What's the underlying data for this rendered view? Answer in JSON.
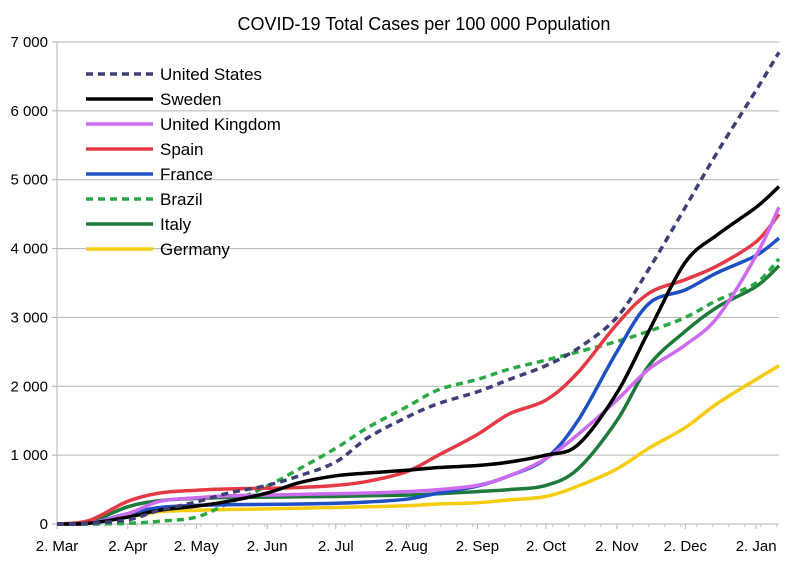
{
  "chart_data": {
    "type": "line",
    "title": "COVID-19 Total Cases per 100 000 Population",
    "xlabel": "",
    "ylabel": "",
    "ylim": [
      0,
      7000
    ],
    "y_ticks": [
      "0",
      "1 000",
      "2 000",
      "3 000",
      "4 000",
      "5 000",
      "6 000",
      "7 000"
    ],
    "x_ticks": [
      "2. Mar",
      "2. Apr",
      "2. May",
      "2. Jun",
      "2. Jul",
      "2. Aug",
      "2. Sep",
      "2. Oct",
      "2. Nov",
      "2. Dec",
      "2. Jan"
    ],
    "x_unit": "days since 2. Mar",
    "xlim": [
      0,
      316
    ],
    "grid": "horizontal",
    "legend_position": "top-left",
    "series": [
      {
        "name": "United States",
        "color": "#3f3f78",
        "dashed": true,
        "x": [
          0,
          14,
          31,
          45,
          61,
          75,
          92,
          106,
          122,
          136,
          153,
          167,
          184,
          198,
          214,
          228,
          245,
          259,
          275,
          289,
          306,
          316
        ],
        "y": [
          0,
          10,
          60,
          200,
          320,
          450,
          560,
          700,
          900,
          1250,
          1550,
          1750,
          1920,
          2100,
          2300,
          2550,
          3000,
          3700,
          4600,
          5400,
          6300,
          6850
        ]
      },
      {
        "name": "Sweden",
        "color": "#000000",
        "dashed": false,
        "x": [
          0,
          14,
          31,
          45,
          61,
          75,
          92,
          106,
          122,
          136,
          153,
          167,
          184,
          198,
          214,
          228,
          245,
          259,
          275,
          289,
          306,
          316
        ],
        "y": [
          0,
          10,
          100,
          200,
          260,
          330,
          450,
          600,
          700,
          740,
          780,
          820,
          850,
          900,
          1000,
          1150,
          1900,
          2800,
          3800,
          4200,
          4600,
          4900
        ]
      },
      {
        "name": "United Kingdom",
        "color": "#cc6bf0",
        "dashed": false,
        "x": [
          0,
          14,
          31,
          45,
          61,
          75,
          92,
          106,
          122,
          136,
          153,
          167,
          184,
          198,
          214,
          228,
          245,
          259,
          275,
          289,
          306,
          316
        ],
        "y": [
          0,
          10,
          150,
          330,
          380,
          410,
          420,
          430,
          440,
          450,
          470,
          500,
          560,
          700,
          950,
          1300,
          1800,
          2250,
          2600,
          3000,
          3900,
          4600
        ]
      },
      {
        "name": "Spain",
        "color": "#e53a46",
        "dashed": false,
        "x": [
          0,
          14,
          31,
          45,
          61,
          75,
          92,
          106,
          122,
          136,
          153,
          167,
          184,
          198,
          214,
          228,
          245,
          259,
          275,
          289,
          306,
          316
        ],
        "y": [
          0,
          50,
          330,
          450,
          490,
          510,
          520,
          530,
          560,
          620,
          760,
          1000,
          1300,
          1600,
          1800,
          2200,
          2900,
          3350,
          3550,
          3750,
          4100,
          4500
        ]
      },
      {
        "name": "France",
        "color": "#1f4fc4",
        "dashed": false,
        "x": [
          0,
          14,
          31,
          45,
          61,
          75,
          92,
          106,
          122,
          136,
          153,
          167,
          184,
          198,
          214,
          228,
          245,
          259,
          275,
          289,
          306,
          316
        ],
        "y": [
          0,
          10,
          150,
          240,
          270,
          280,
          285,
          290,
          300,
          320,
          360,
          450,
          550,
          700,
          950,
          1500,
          2500,
          3200,
          3400,
          3650,
          3900,
          4150
        ]
      },
      {
        "name": "Brazil",
        "color": "#2aa845",
        "dashed": true,
        "x": [
          0,
          14,
          31,
          45,
          61,
          75,
          92,
          106,
          122,
          136,
          153,
          167,
          184,
          198,
          214,
          228,
          245,
          259,
          275,
          289,
          306,
          316
        ],
        "y": [
          0,
          0,
          10,
          40,
          100,
          300,
          550,
          800,
          1100,
          1400,
          1700,
          1950,
          2100,
          2250,
          2380,
          2500,
          2650,
          2800,
          3000,
          3250,
          3500,
          3850
        ]
      },
      {
        "name": "Italy",
        "color": "#1e7a3b",
        "dashed": false,
        "x": [
          0,
          14,
          31,
          45,
          61,
          75,
          92,
          106,
          122,
          136,
          153,
          167,
          184,
          198,
          214,
          228,
          245,
          259,
          275,
          289,
          306,
          316
        ],
        "y": [
          0,
          30,
          250,
          340,
          370,
          385,
          390,
          395,
          400,
          410,
          420,
          440,
          470,
          500,
          560,
          800,
          1500,
          2300,
          2800,
          3150,
          3450,
          3750
        ]
      },
      {
        "name": "Germany",
        "color": "#f5cc10",
        "dashed": false,
        "x": [
          0,
          14,
          31,
          45,
          61,
          75,
          92,
          106,
          122,
          136,
          153,
          167,
          184,
          198,
          214,
          228,
          245,
          259,
          275,
          289,
          306,
          316
        ],
        "y": [
          0,
          10,
          100,
          180,
          200,
          210,
          220,
          230,
          240,
          250,
          265,
          290,
          310,
          350,
          400,
          550,
          800,
          1100,
          1400,
          1750,
          2100,
          2300
        ]
      }
    ]
  }
}
